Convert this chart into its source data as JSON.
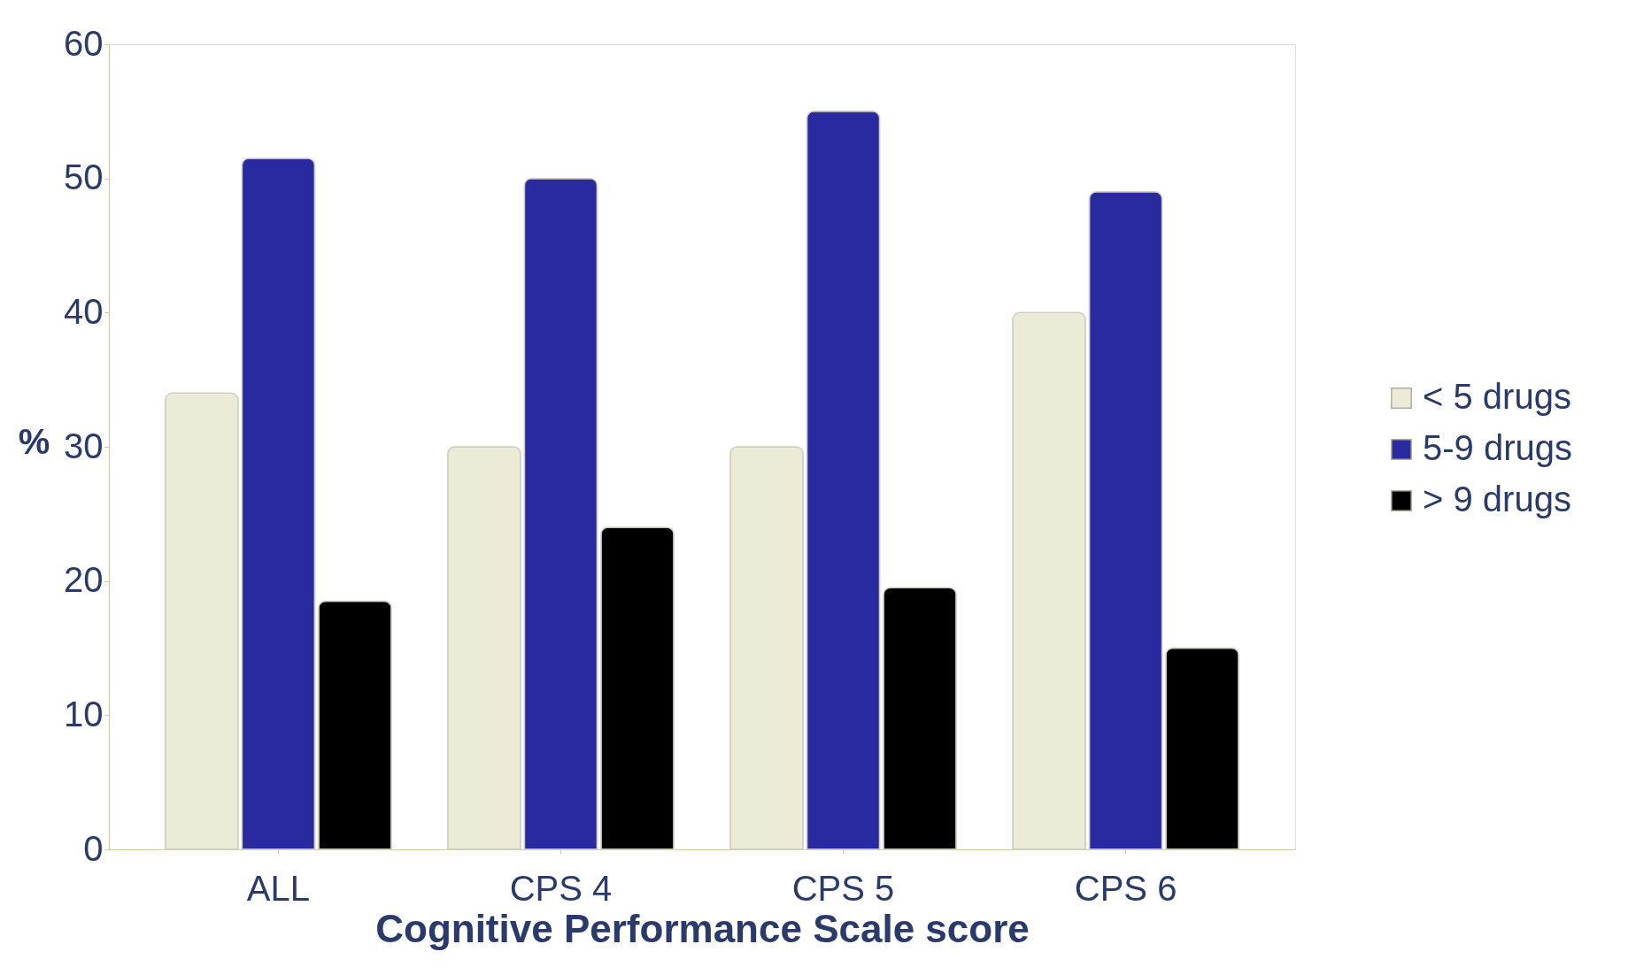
{
  "chart_data": {
    "type": "bar",
    "xlabel": "Cognitive Performance Scale score",
    "ylabel": "%",
    "categories": [
      "ALL",
      "CPS 4",
      "CPS 5",
      "CPS 6"
    ],
    "series": [
      {
        "name": "< 5 drugs",
        "color": "#ecebd8",
        "values": [
          34,
          30,
          30,
          40
        ]
      },
      {
        "name": "5-9 drugs",
        "color": "#2a2aa0",
        "values": [
          51.5,
          50,
          55,
          49
        ]
      },
      {
        "name": "> 9 drugs",
        "color": "#000000",
        "values": [
          18.5,
          24,
          19.5,
          15
        ]
      }
    ],
    "ylim": [
      0,
      60
    ],
    "yticks": [
      0,
      10,
      20,
      30,
      40,
      50,
      60
    ],
    "grid": false,
    "legend": "right"
  }
}
